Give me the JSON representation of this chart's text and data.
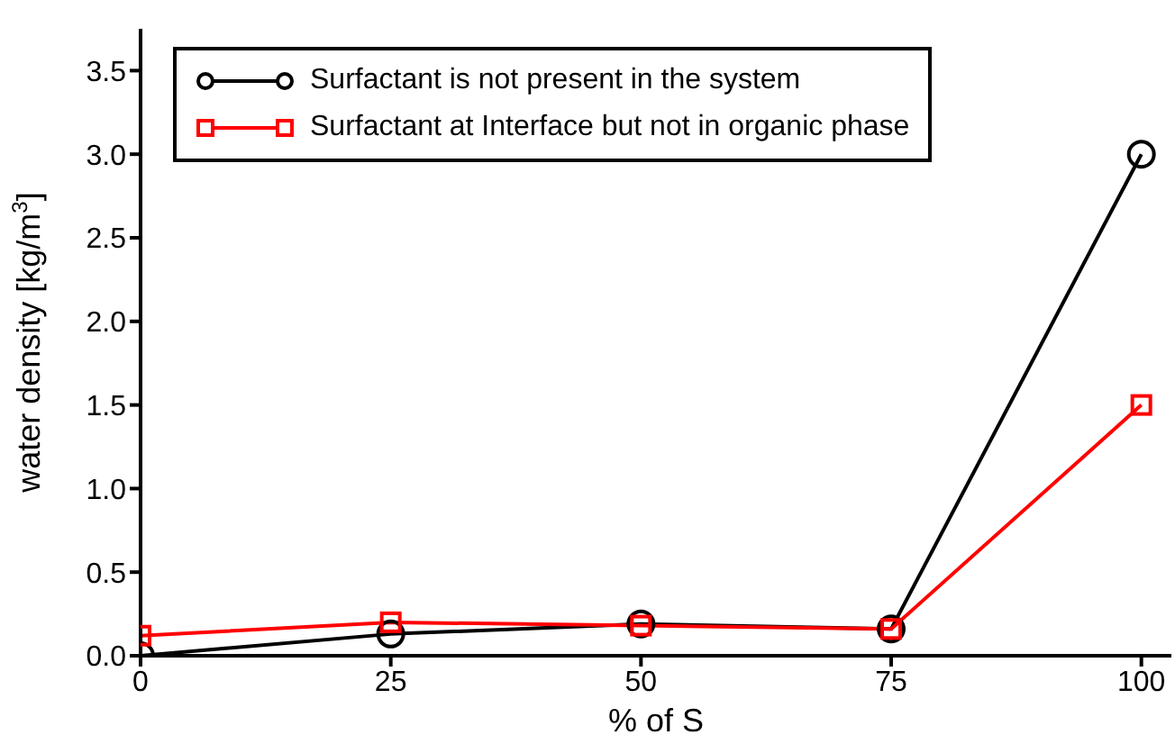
{
  "chart_data": {
    "type": "line",
    "xlabel": "% of S",
    "ylabel": "water density  [kg/m$^{3}$]",
    "xlim": [
      0,
      103
    ],
    "xticks": [
      0,
      25,
      50,
      75,
      100
    ],
    "ylim": [
      0,
      3.75
    ],
    "yticks": [
      {
        "value": 0,
        "label": "0.0"
      },
      {
        "value": 0.5,
        "label": "0.5"
      },
      {
        "value": 1,
        "label": "1.0"
      },
      {
        "value": 1.5,
        "label": "1.5"
      },
      {
        "value": 2,
        "label": "2.0"
      },
      {
        "value": 2.5,
        "label": "2.5"
      },
      {
        "value": 3,
        "label": "3.0"
      },
      {
        "value": 3.5,
        "label": "3.5"
      }
    ],
    "x": [
      0,
      25,
      50,
      75,
      100
    ],
    "grid": false,
    "legend": "top left",
    "series": [
      {
        "name": "Surfactant is not present in the system",
        "color": "#000000",
        "marker": "circle",
        "values": [
          0,
          0.13,
          0.19,
          0.16,
          3.0
        ]
      },
      {
        "name": "Surfactant at Interface but not in organic phase",
        "color": "#ff0000",
        "marker": "square",
        "values": [
          0.12,
          0.2,
          0.18,
          0.16,
          1.5
        ]
      }
    ]
  }
}
